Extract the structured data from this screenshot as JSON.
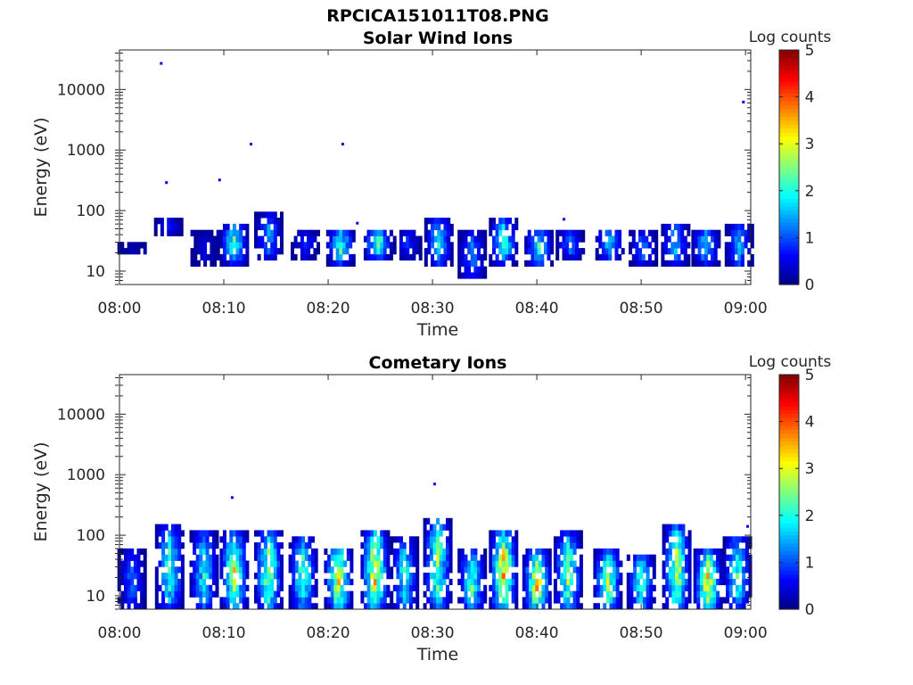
{
  "figure": {
    "title": "RPCICA151011T08.PNG"
  },
  "chart_data": [
    {
      "type": "heatmap",
      "title": "Solar Wind Ions",
      "xlabel": "Time",
      "ylabel": "Energy (eV)",
      "x_ticks": [
        "08:00",
        "08:10",
        "08:20",
        "08:30",
        "08:40",
        "08:50",
        "09:00"
      ],
      "y_ticks": [
        "10",
        "100",
        "1000",
        "10000"
      ],
      "y_scale": "log",
      "x_range_minutes": [
        0,
        60.5
      ],
      "y_range_eV": [
        6,
        45000
      ],
      "colorbar": {
        "label": "Log counts",
        "ticks": [
          "0",
          "1",
          "2",
          "3",
          "4",
          "5"
        ],
        "range": [
          0,
          5
        ],
        "colormap": "jet"
      },
      "bursts": [
        {
          "t": 1.2,
          "lo": 22,
          "hi": 27,
          "peak": 0.3
        },
        {
          "t": 4.7,
          "lo": 45,
          "hi": 70,
          "peak": 0.8
        },
        {
          "t": 8.2,
          "lo": 14,
          "hi": 40,
          "peak": 0.5
        },
        {
          "t": 11.0,
          "lo": 15,
          "hi": 55,
          "peak": 2.2
        },
        {
          "t": 14.3,
          "lo": 18,
          "hi": 80,
          "peak": 1.4
        },
        {
          "t": 17.8,
          "lo": 18,
          "hi": 45,
          "peak": 0.8
        },
        {
          "t": 21.2,
          "lo": 15,
          "hi": 45,
          "peak": 2.2
        },
        {
          "t": 24.8,
          "lo": 18,
          "hi": 45,
          "peak": 2.5
        },
        {
          "t": 27.6,
          "lo": 18,
          "hi": 45,
          "peak": 0.8
        },
        {
          "t": 30.6,
          "lo": 14,
          "hi": 70,
          "peak": 1.8
        },
        {
          "t": 33.8,
          "lo": 8,
          "hi": 40,
          "peak": 1.3
        },
        {
          "t": 36.8,
          "lo": 15,
          "hi": 65,
          "peak": 2.2
        },
        {
          "t": 40.2,
          "lo": 14,
          "hi": 45,
          "peak": 2.0
        },
        {
          "t": 43.2,
          "lo": 18,
          "hi": 45,
          "peak": 1.2
        },
        {
          "t": 47.0,
          "lo": 18,
          "hi": 45,
          "peak": 1.8
        },
        {
          "t": 50.2,
          "lo": 14,
          "hi": 45,
          "peak": 1.2
        },
        {
          "t": 53.3,
          "lo": 14,
          "hi": 60,
          "peak": 1.6
        },
        {
          "t": 56.2,
          "lo": 15,
          "hi": 45,
          "peak": 1.8
        },
        {
          "t": 59.4,
          "lo": 12,
          "hi": 60,
          "peak": 1.5
        }
      ],
      "isolated_points": [
        {
          "t": 4.0,
          "e": 27000
        },
        {
          "t": 4.5,
          "e": 290
        },
        {
          "t": 9.6,
          "e": 320
        },
        {
          "t": 12.6,
          "e": 1250
        },
        {
          "t": 21.4,
          "e": 1250
        },
        {
          "t": 59.8,
          "e": 6200
        },
        {
          "t": 22.8,
          "e": 62
        },
        {
          "t": 42.6,
          "e": 72
        }
      ]
    },
    {
      "type": "heatmap",
      "title": "Cometary Ions",
      "xlabel": "Time",
      "ylabel": "Energy (eV)",
      "x_ticks": [
        "08:00",
        "08:10",
        "08:20",
        "08:30",
        "08:40",
        "08:50",
        "09:00"
      ],
      "y_ticks": [
        "10",
        "100",
        "1000",
        "10000"
      ],
      "y_scale": "log",
      "x_range_minutes": [
        0,
        60.5
      ],
      "y_range_eV": [
        6,
        45000
      ],
      "colorbar": {
        "label": "Log counts",
        "ticks": [
          "0",
          "1",
          "2",
          "3",
          "4",
          "5"
        ],
        "range": [
          0,
          5
        ],
        "colormap": "jet"
      },
      "bursts": [
        {
          "t": 1.2,
          "lo": 6,
          "hi": 55,
          "peak": 1.2
        },
        {
          "t": 4.8,
          "lo": 6,
          "hi": 140,
          "peak": 2.2
        },
        {
          "t": 8.1,
          "lo": 6,
          "hi": 110,
          "peak": 2.0
        },
        {
          "t": 11.0,
          "lo": 6,
          "hi": 100,
          "peak": 3.0
        },
        {
          "t": 14.3,
          "lo": 6,
          "hi": 110,
          "peak": 2.8
        },
        {
          "t": 17.6,
          "lo": 6,
          "hi": 80,
          "peak": 2.4
        },
        {
          "t": 21.0,
          "lo": 6,
          "hi": 60,
          "peak": 3.2
        },
        {
          "t": 24.5,
          "lo": 6,
          "hi": 120,
          "peak": 3.4
        },
        {
          "t": 27.3,
          "lo": 6,
          "hi": 80,
          "peak": 2.0
        },
        {
          "t": 30.5,
          "lo": 6,
          "hi": 180,
          "peak": 2.6
        },
        {
          "t": 33.8,
          "lo": 6,
          "hi": 55,
          "peak": 2.4
        },
        {
          "t": 36.8,
          "lo": 6,
          "hi": 110,
          "peak": 3.4
        },
        {
          "t": 40.0,
          "lo": 6,
          "hi": 50,
          "peak": 3.3
        },
        {
          "t": 43.0,
          "lo": 6,
          "hi": 100,
          "peak": 2.6
        },
        {
          "t": 46.8,
          "lo": 6,
          "hi": 50,
          "peak": 2.8
        },
        {
          "t": 50.0,
          "lo": 6,
          "hi": 45,
          "peak": 2.2
        },
        {
          "t": 53.4,
          "lo": 6,
          "hi": 130,
          "peak": 3.0
        },
        {
          "t": 56.4,
          "lo": 6,
          "hi": 50,
          "peak": 3.2
        },
        {
          "t": 59.2,
          "lo": 6,
          "hi": 90,
          "peak": 2.2
        }
      ],
      "isolated_points": [
        {
          "t": 10.8,
          "e": 420
        },
        {
          "t": 30.2,
          "e": 700
        },
        {
          "t": 60.2,
          "e": 140
        }
      ]
    }
  ]
}
